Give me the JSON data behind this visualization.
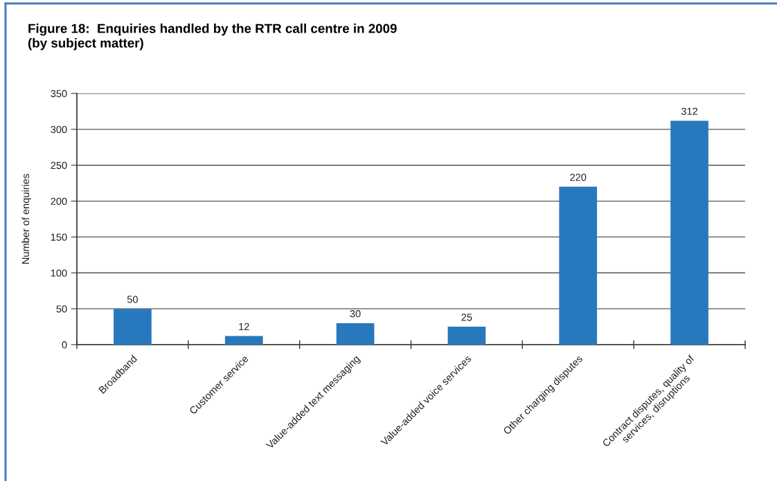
{
  "chart_data": {
    "type": "bar",
    "title": "Figure 18:  Enquiries handled by the RTR call centre in 2009\n(by subject matter)",
    "ylabel": "Number of enquiries",
    "categories": [
      "Broadband",
      "Customer service",
      "Value-added text messaging",
      "Value-added voice services",
      "Other charging disputes",
      "Contract disputes, quality of\nservices, disruptions"
    ],
    "values": [
      50,
      12,
      30,
      25,
      220,
      312
    ],
    "color": "#2878be",
    "ylim": [
      0,
      350
    ],
    "yticks": [
      0,
      50,
      100,
      150,
      200,
      250,
      300,
      350
    ],
    "grid": "y",
    "data_labels": true
  }
}
